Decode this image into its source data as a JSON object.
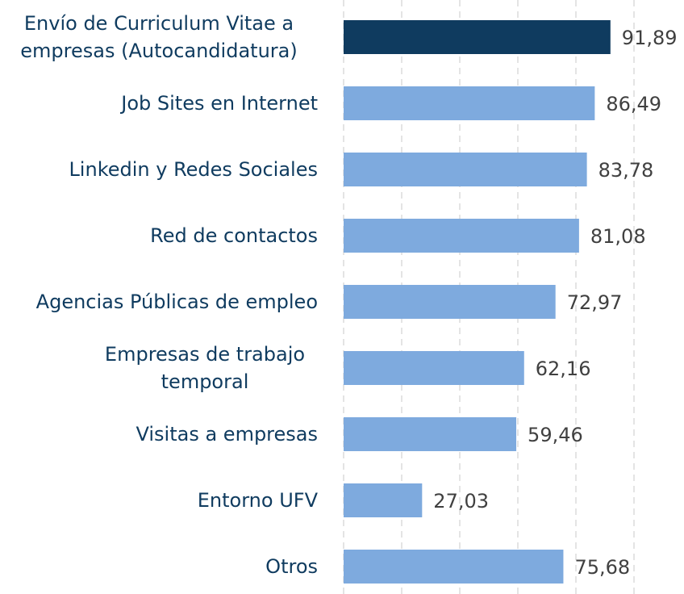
{
  "chart_data": {
    "type": "barh",
    "categories": [
      "Envío de Curriculum Vitae a empresas (Autocandidatura)",
      "Job Sites en Internet",
      "Linkedin y Redes Sociales",
      "Red de contactos",
      "Agencias Públicas de empleo",
      "Empresas de trabajo temporal",
      "Visitas a empresas",
      "Entorno UFV",
      "Otros"
    ],
    "values": [
      91.89,
      86.49,
      83.78,
      81.08,
      72.97,
      62.16,
      59.46,
      27.03,
      75.68
    ],
    "value_labels": [
      "91,89",
      "86,49",
      "83,78",
      "81,08",
      "72,97",
      "62,16",
      "59,46",
      "27,03",
      "75,68"
    ],
    "colors": [
      "#0f3b5f",
      "#7eaade",
      "#7eaade",
      "#7eaade",
      "#7eaade",
      "#7eaade",
      "#7eaade",
      "#7eaade",
      "#7eaade"
    ],
    "xlim": [
      0,
      100
    ],
    "xticks": [
      0,
      20,
      40,
      60,
      80,
      100
    ],
    "grid": true
  }
}
